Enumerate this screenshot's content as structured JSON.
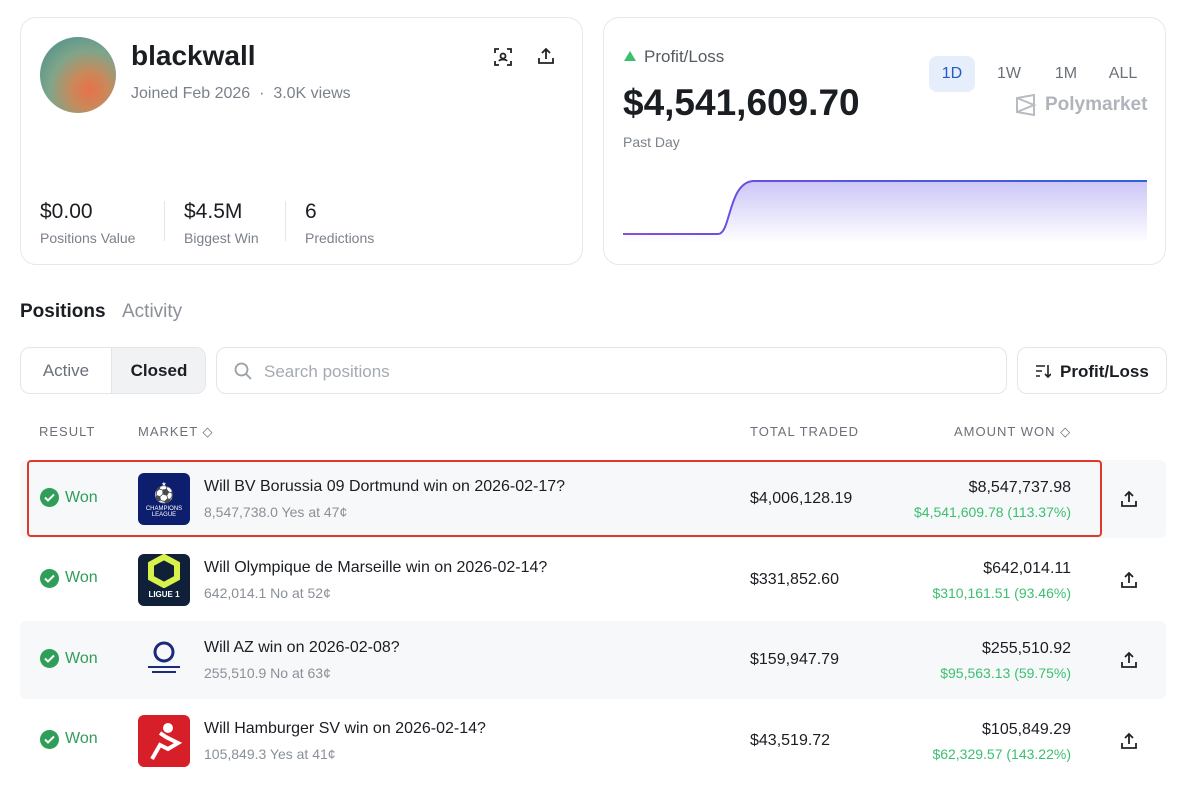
{
  "profile": {
    "name": "blackwall",
    "joined": "Joined Feb 2026",
    "views": "3.0K views",
    "stats": [
      {
        "value": "$0.00",
        "label": "Positions Value"
      },
      {
        "value": "$4.5M",
        "label": "Biggest Win"
      },
      {
        "value": "6",
        "label": "Predictions"
      }
    ]
  },
  "pnl": {
    "label": "Profit/Loss",
    "amount": "$4,541,609.70",
    "period": "Past Day",
    "ranges": [
      "1D",
      "1W",
      "1M",
      "ALL"
    ],
    "brand": "Polymarket"
  },
  "tabs": [
    "Positions",
    "Activity"
  ],
  "filters": [
    "Active",
    "Closed"
  ],
  "search_placeholder": "Search positions",
  "sort": "Profit/Loss",
  "table": {
    "headers": [
      "RESULT",
      "MARKET",
      "TOTAL TRADED",
      "AMOUNT WON"
    ],
    "rows": [
      {
        "result": "Won",
        "logo": "CHAMPIONS LEAGUE",
        "market": "Will BV Borussia 09 Dortmund win on 2026-02-17?",
        "detail": "8,547,738.0 Yes at 47¢",
        "traded": "$4,006,128.19",
        "won": "$8,547,737.98",
        "gain": "$4,541,609.78 (113.37%)"
      },
      {
        "result": "Won",
        "logo": "LIGUE 1",
        "market": "Will Olympique de Marseille win on 2026-02-14?",
        "detail": "642,014.1 No at 52¢",
        "traded": "$331,852.60",
        "won": "$642,014.11",
        "gain": "$310,161.51 (93.46%)"
      },
      {
        "result": "Won",
        "market": "Will AZ win on 2026-02-08?",
        "detail": "255,510.9 No at 63¢",
        "traded": "$159,947.79",
        "won": "$255,510.92",
        "gain": "$95,563.13 (59.75%)"
      },
      {
        "result": "Won",
        "market": "Will Hamburger SV win on 2026-02-14?",
        "detail": "105,849.3 Yes at 41¢",
        "traded": "$43,519.72",
        "won": "$105,849.29",
        "gain": "$62,329.57 (143.22%)"
      }
    ]
  }
}
